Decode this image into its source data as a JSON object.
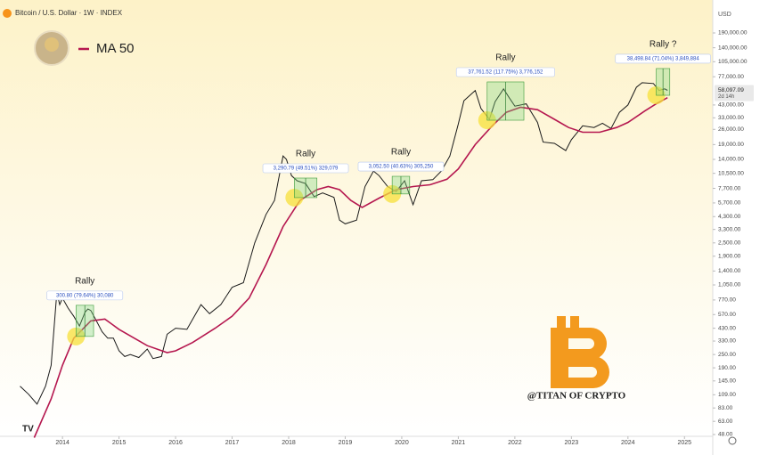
{
  "chart_data": {
    "type": "line",
    "title": "Bitcoin / U.S. Dollar · 1W · INDEX",
    "currency": "USD",
    "log_scale": true,
    "xlim": [
      2013.21,
      2025.5
    ],
    "ylim": [
      38.5,
      312000
    ],
    "xticks": [
      2014,
      2015,
      2016,
      2017,
      2018,
      2019,
      2020,
      2021,
      2022,
      2023,
      2024,
      2025
    ],
    "yticks": [
      {
        "value": 190000,
        "label": "190,000.00"
      },
      {
        "value": 140000,
        "label": "140,000.00"
      },
      {
        "value": 105000,
        "label": "105,000.00"
      },
      {
        "value": 77000,
        "label": "77,000.00"
      },
      {
        "value": 43000,
        "label": "43,000.00"
      },
      {
        "value": 33000,
        "label": "33,000.00"
      },
      {
        "value": 26000,
        "label": "26,000.00"
      },
      {
        "value": 19000,
        "label": "19,000.00"
      },
      {
        "value": 14000,
        "label": "14,000.00"
      },
      {
        "value": 10500,
        "label": "10,500.00"
      },
      {
        "value": 7700,
        "label": "7,700.00"
      },
      {
        "value": 5700,
        "label": "5,700.00"
      },
      {
        "value": 4300,
        "label": "4,300.00"
      },
      {
        "value": 3300,
        "label": "3,300.00"
      },
      {
        "value": 2500,
        "label": "2,500.00"
      },
      {
        "value": 1900,
        "label": "1,900.00"
      },
      {
        "value": 1400,
        "label": "1,400.00"
      },
      {
        "value": 1050,
        "label": "1,050.00"
      },
      {
        "value": 770,
        "label": "770.00"
      },
      {
        "value": 570,
        "label": "570.00"
      },
      {
        "value": 430,
        "label": "430.00"
      },
      {
        "value": 330,
        "label": "330.00"
      },
      {
        "value": 250,
        "label": "250.00"
      },
      {
        "value": 190,
        "label": "190.00"
      },
      {
        "value": 145,
        "label": "145.00"
      },
      {
        "value": 109,
        "label": "109.00"
      },
      {
        "value": 83,
        "label": "83.00"
      },
      {
        "value": 63,
        "label": "63.00"
      },
      {
        "value": 48,
        "label": "48.00"
      }
    ],
    "current_price": {
      "value": 58097.09,
      "label": "58,097.09",
      "countdown": "2d 14h"
    },
    "series": [
      {
        "color": "#1a1a1a",
        "x": [
          2013.25,
          2013.4,
          2013.55,
          2013.7,
          2013.8,
          2013.9,
          2013.95,
          2014.0,
          2014.1,
          2014.2,
          2014.3,
          2014.4,
          2014.45,
          2014.5,
          2014.6,
          2014.7,
          2014.8,
          2014.9,
          2015.0,
          2015.1,
          2015.2,
          2015.35,
          2015.5,
          2015.6,
          2015.75,
          2015.85,
          2016.0,
          2016.2,
          2016.45,
          2016.6,
          2016.8,
          2017.0,
          2017.2,
          2017.4,
          2017.6,
          2017.75,
          2017.9,
          2017.96,
          2018.05,
          2018.15,
          2018.3,
          2018.45,
          2018.6,
          2018.8,
          2018.9,
          2019.0,
          2019.2,
          2019.35,
          2019.5,
          2019.6,
          2019.75,
          2019.9,
          2020.05,
          2020.2,
          2020.35,
          2020.55,
          2020.7,
          2020.85,
          2021.0,
          2021.1,
          2021.3,
          2021.4,
          2021.55,
          2021.65,
          2021.8,
          2021.9,
          2022.0,
          2022.2,
          2022.4,
          2022.5,
          2022.7,
          2022.9,
          2023.0,
          2023.2,
          2023.4,
          2023.55,
          2023.7,
          2023.85,
          2024.0,
          2024.15,
          2024.25,
          2024.45,
          2024.55,
          2024.65,
          2024.7
        ],
        "values": [
          130,
          110,
          90,
          130,
          200,
          900,
          700,
          800,
          650,
          550,
          450,
          600,
          640,
          620,
          500,
          400,
          350,
          350,
          270,
          240,
          250,
          235,
          280,
          230,
          240,
          380,
          430,
          420,
          700,
          580,
          700,
          1000,
          1100,
          2500,
          4500,
          6000,
          15000,
          14000,
          10000,
          9000,
          8500,
          6500,
          7000,
          6400,
          4000,
          3700,
          4000,
          8000,
          11000,
          10000,
          8000,
          7200,
          9000,
          5500,
          9000,
          9200,
          11000,
          15000,
          29000,
          47000,
          58000,
          40000,
          32000,
          46000,
          60000,
          50000,
          42000,
          44000,
          30000,
          20000,
          19500,
          16800,
          21000,
          28000,
          27000,
          29500,
          26500,
          37000,
          43000,
          62000,
          68000,
          67000,
          58000,
          60000,
          58097.09
        ]
      },
      {
        "name": "MA 50",
        "color": "#b5174f",
        "x": [
          2013.5,
          2013.8,
          2014.0,
          2014.2,
          2014.5,
          2014.75,
          2015.0,
          2015.5,
          2015.85,
          2016.0,
          2016.3,
          2016.7,
          2017.0,
          2017.3,
          2017.6,
          2017.9,
          2018.2,
          2018.5,
          2018.7,
          2018.9,
          2019.1,
          2019.3,
          2019.6,
          2019.9,
          2020.2,
          2020.5,
          2020.8,
          2021.0,
          2021.3,
          2021.6,
          2021.85,
          2022.1,
          2022.4,
          2022.7,
          2022.95,
          2023.2,
          2023.5,
          2023.8,
          2024.0,
          2024.3,
          2024.5,
          2024.7
        ],
        "values": [
          45,
          100,
          200,
          350,
          500,
          520,
          420,
          300,
          260,
          270,
          320,
          430,
          550,
          800,
          1600,
          3500,
          6000,
          7500,
          8000,
          7500,
          6000,
          5200,
          6300,
          7500,
          8000,
          8300,
          9300,
          11500,
          19000,
          28000,
          37000,
          41000,
          39000,
          32000,
          27000,
          24500,
          24500,
          27000,
          30000,
          38000,
          44000,
          50000
        ]
      }
    ],
    "annotations": [
      {
        "title": "Rally",
        "measure": "300.80 (79.64%) 30,080",
        "x": [
          2014.24,
          2014.55
        ],
        "y": [
          363,
          690
        ]
      },
      {
        "title": "Rally",
        "measure": "3,290.79 (49.51%) 329,079",
        "x": [
          2018.1,
          2018.5
        ],
        "y": [
          6360,
          9520
        ]
      },
      {
        "title": "Rally",
        "measure": "3,052.50 (40.63%) 305,250",
        "x": [
          2019.83,
          2020.14
        ],
        "y": [
          6860,
          9870
        ]
      },
      {
        "title": "Rally",
        "measure": "37,761.52 (117.75%) 3,776,152",
        "x": [
          2021.51,
          2022.16
        ],
        "y": [
          31400,
          69200
        ]
      },
      {
        "title": "Rally ?",
        "measure": "38,498.84 (71.04%) 3,849,884",
        "x": [
          2024.5,
          2024.74
        ],
        "y": [
          52500,
          91200
        ]
      }
    ],
    "watermark": "@TITAN OF CRYPTO"
  }
}
